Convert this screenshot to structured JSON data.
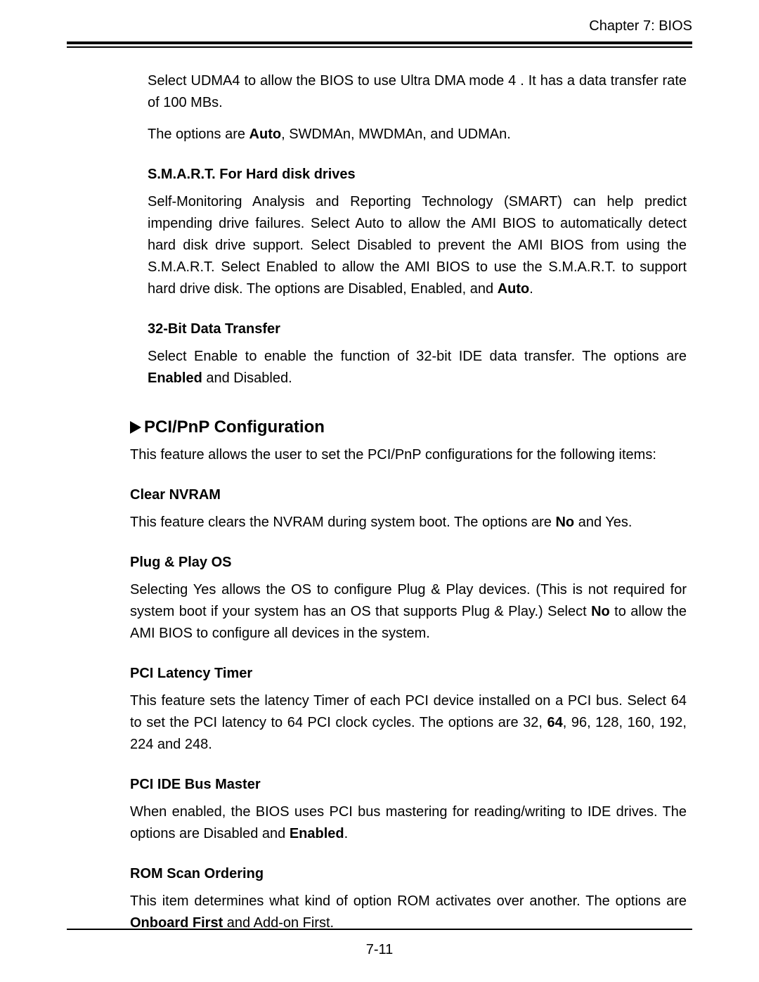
{
  "header": {
    "chapter": "Chapter 7: BIOS"
  },
  "intro": {
    "line1_a": "Select UDMA4 to allow the BIOS to use Ultra DMA mode 4 . It has a data transfer rate of 100 MBs.",
    "line2_pre": "The  options are ",
    "line2_bold": "Auto",
    "line2_post": ", SWDMAn, MWDMAn, and UDMAn."
  },
  "smart": {
    "title": "S.M.A.R.T. For Hard disk drives",
    "body_pre": "Self-Monitoring Analysis and Reporting Technology (SMART) can help predict impending drive failures. Select Auto to allow the AMI BIOS to automatically detect hard disk drive support. Select Disabled to prevent the AMI BIOS from using the S.M.A.R.T. Select Enabled to allow the AMI BIOS to use the S.M.A.R.T. to support hard drive disk. The options are Disabled, Enabled, and ",
    "body_bold": "Auto",
    "body_post": "."
  },
  "bit32": {
    "title": "32-Bit Data Transfer",
    "body_pre": "Select Enable to enable the function of 32-bit IDE data transfer. The options are ",
    "body_bold": "Enabled",
    "body_post": " and Disabled."
  },
  "section": {
    "title": "PCI/PnP Configuration",
    "intro": "This feature allows the user to set the PCI/PnP configurations for the following items:"
  },
  "clear_nvram": {
    "title": "Clear NVRAM",
    "pre": "This feature clears the NVRAM during system boot.  The options are ",
    "bold": "No",
    "post": " and Yes."
  },
  "pnp_os": {
    "title": "Plug & Play OS",
    "pre": "Selecting Yes allows the OS to configure Plug & Play devices. (This is not required for system boot if your system has an OS that supports Plug & Play.) Select ",
    "bold": "No",
    "post": " to allow the AMI BIOS to configure all devices in the system."
  },
  "latency": {
    "title": "PCI Latency Timer",
    "pre": "This feature sets the latency Timer of each PCI device installed on a PCI bus. Select 64 to set the PCI latency to 64 PCI clock cycles. The options are 32, ",
    "bold": "64",
    "post": ", 96, 128, 160, 192, 224 and 248."
  },
  "busmaster": {
    "title": "PCI IDE Bus Master",
    "pre": "When enabled, the BIOS uses PCI bus mastering for reading/writing to IDE drives. The options are Disabled and ",
    "bold": "Enabled",
    "post": "."
  },
  "romscan": {
    "title": "ROM Scan Ordering",
    "pre": "This item determines what kind of option ROM activates over another. The options are ",
    "bold": "Onboard First",
    "post": " and Add-on First."
  },
  "footer": {
    "page": "7-11"
  }
}
